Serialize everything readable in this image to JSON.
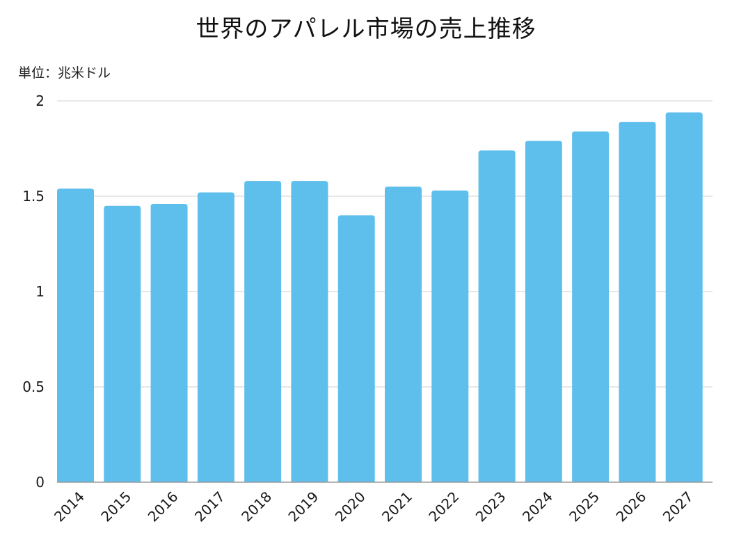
{
  "chart_data": {
    "type": "bar",
    "title": "世界のアパレル市場の売上推移",
    "unit_label": "単位：兆米ドル",
    "xlabel": "",
    "ylabel": "",
    "categories": [
      "2014",
      "2015",
      "2016",
      "2017",
      "2018",
      "2019",
      "2020",
      "2021",
      "2022",
      "2023",
      "2024",
      "2025",
      "2026",
      "2027"
    ],
    "values": [
      1.54,
      1.45,
      1.46,
      1.52,
      1.58,
      1.58,
      1.4,
      1.55,
      1.53,
      1.74,
      1.79,
      1.84,
      1.89,
      1.94
    ],
    "ylim": [
      0,
      2
    ],
    "yticks": [
      0,
      0.5,
      1,
      1.5,
      2
    ],
    "ytick_labels": [
      "0",
      "0.5",
      "1",
      "1.5",
      "2"
    ],
    "grid": true,
    "legend": "none",
    "colors": {
      "bar": "#5fbfec",
      "grid": "#cfcfcf",
      "axis": "#9a9a9a"
    }
  }
}
